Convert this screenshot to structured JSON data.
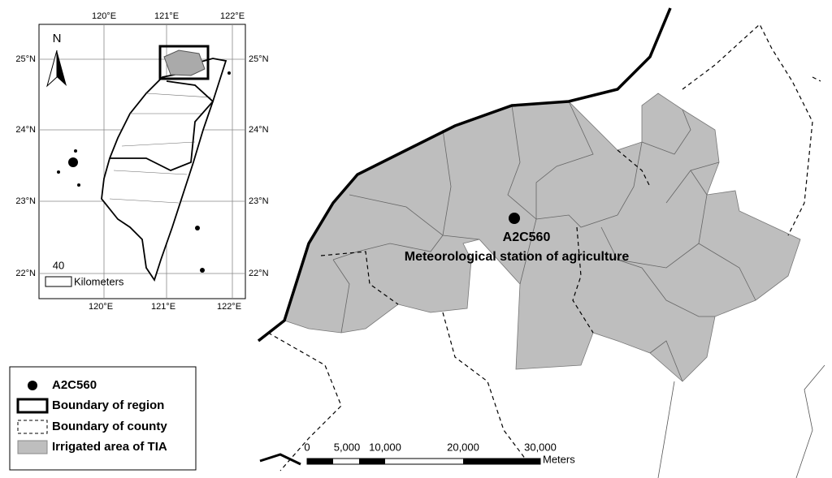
{
  "inset": {
    "lon_labels_top": [
      "120°E",
      "121°E",
      "122°E"
    ],
    "lon_labels_bottom": [
      "120°E",
      "121°E",
      "122°E"
    ],
    "lat_labels_left": [
      "25°N",
      "24°N",
      "23°N",
      "22°N"
    ],
    "lat_labels_right": [
      "25°N",
      "24°N",
      "23°N",
      "22°N"
    ],
    "north": "N",
    "scale_value": "40",
    "scale_unit": "Kilometers"
  },
  "station": {
    "id": "A2C560",
    "description": "Meteorological station of agriculture"
  },
  "legend": [
    {
      "label": "A2C560"
    },
    {
      "label": "Boundary of region"
    },
    {
      "label": "Boundary of county"
    },
    {
      "label": "Irrigated area of TIA"
    }
  ],
  "scale_bar": {
    "ticks": [
      "0",
      "5,000",
      "10,000",
      "20,000",
      "30,000"
    ],
    "unit": "Meters"
  }
}
